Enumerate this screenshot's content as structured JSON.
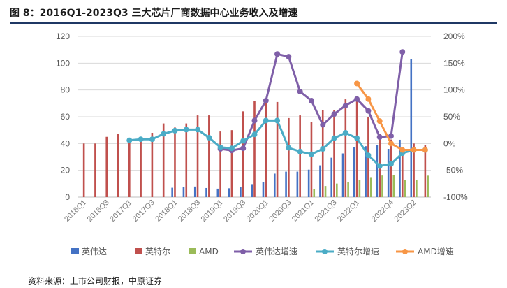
{
  "figure_title": "图 8：2016Q1-2023Q3 三大芯片厂商数据中心业务收入及增速",
  "source_note": "资料来源：上市公司财报，中原证券",
  "colors": {
    "nvidia_bar": "#4472c4",
    "intel_bar": "#c0504d",
    "amd_bar": "#9bbb59",
    "nvidia_line": "#7f5fa8",
    "intel_line": "#4bacc6",
    "amd_line": "#f79646",
    "grid": "#d9d9d9"
  },
  "chart_data": {
    "type": "bar+line",
    "title": "",
    "categories": [
      "2016Q1",
      "2016Q2",
      "2016Q3",
      "2016Q4",
      "2017Q1",
      "2017Q2",
      "2017Q3",
      "2017Q4",
      "2018Q1",
      "2018Q2",
      "2018Q3",
      "2018Q4",
      "2019Q1",
      "2019Q2",
      "2019Q3",
      "2019Q4",
      "2020Q1",
      "2020Q2",
      "2020Q3",
      "2020Q4",
      "2021Q1",
      "2021Q2",
      "2021Q3",
      "2021Q4",
      "2022Q1",
      "2022Q2",
      "2022Q3",
      "2022Q4",
      "2023Q1",
      "2023Q2",
      "2023Q3"
    ],
    "x_tick_labels": [
      "2016Q1",
      "2016Q3",
      "2017Q1",
      "2017Q3",
      "2018Q1",
      "2018Q3",
      "2019Q1",
      "2019Q3",
      "2020Q1",
      "2020Q3",
      "2021Q1",
      "2021Q3",
      "2022Q1",
      "2022Q4",
      "2023Q2"
    ],
    "x_tick_index": [
      0,
      2,
      4,
      6,
      8,
      10,
      12,
      14,
      16,
      18,
      20,
      22,
      24,
      27,
      29
    ],
    "left_axis": {
      "min": 0,
      "max": 120,
      "step": 20,
      "ticks": [
        "0",
        "20",
        "40",
        "60",
        "80",
        "100",
        "120"
      ]
    },
    "right_axis": {
      "min": -100,
      "max": 200,
      "step": 50,
      "ticks": [
        "-100%",
        "-50%",
        "0%",
        "50%",
        "100%",
        "150%",
        "200%"
      ]
    },
    "bar_series": [
      {
        "name": "英伟达",
        "color_key": "nvidia_bar",
        "values": [
          null,
          null,
          null,
          null,
          null,
          null,
          null,
          null,
          7,
          7.6,
          7.9,
          6.8,
          6.3,
          6.6,
          7.3,
          9.7,
          11.4,
          17.5,
          19,
          19,
          20.5,
          23.7,
          29.4,
          32.6,
          37.5,
          38,
          39,
          36,
          42.8,
          103,
          null
        ]
      },
      {
        "name": "英特尔",
        "color_key": "intel_bar",
        "values": [
          40,
          40,
          45,
          47,
          42,
          44,
          48,
          55,
          52,
          55,
          61,
          61,
          49,
          50,
          64,
          72,
          72,
          71,
          59,
          61,
          56,
          65,
          65,
          73,
          73,
          60,
          47,
          43,
          37,
          40,
          39
        ]
      },
      {
        "name": "AMD",
        "color_key": "amd_bar",
        "values": [
          null,
          null,
          null,
          null,
          null,
          null,
          null,
          null,
          null,
          null,
          null,
          null,
          null,
          null,
          null,
          null,
          null,
          null,
          null,
          null,
          6.1,
          8.3,
          10.1,
          11,
          12.9,
          14.9,
          16.1,
          16.6,
          13,
          13,
          16
        ]
      }
    ],
    "line_series": [
      {
        "name": "英伟达增速",
        "color_key": "nvidia_line",
        "values": [
          null,
          null,
          null,
          null,
          null,
          null,
          null,
          null,
          null,
          null,
          null,
          null,
          -10,
          -13,
          -9,
          43,
          80,
          167,
          162,
          97,
          80,
          35,
          55,
          71,
          83,
          61,
          12,
          14,
          171,
          null,
          null
        ]
      },
      {
        "name": "英特尔增速",
        "color_key": "intel_line",
        "values": [
          null,
          null,
          null,
          null,
          6,
          8,
          8,
          18,
          24,
          26,
          26,
          11,
          -7,
          -9,
          5,
          17,
          43,
          43,
          -8,
          -15,
          -20,
          -10,
          10,
          20,
          10,
          -22,
          -42,
          -38,
          -18,
          -12,
          -12
        ]
      },
      {
        "name": "AMD增速",
        "color_key": "amd_line",
        "values": [
          null,
          null,
          null,
          null,
          null,
          null,
          null,
          null,
          null,
          null,
          null,
          null,
          null,
          null,
          null,
          null,
          null,
          null,
          null,
          null,
          null,
          null,
          null,
          null,
          112,
          83,
          42,
          0,
          -12,
          -12,
          -12
        ]
      }
    ],
    "legend": [
      "英伟达",
      "英特尔",
      "AMD",
      "英伟达增速",
      "英特尔增速",
      "AMD增速"
    ],
    "legend_position": "bottom",
    "grid": true
  }
}
